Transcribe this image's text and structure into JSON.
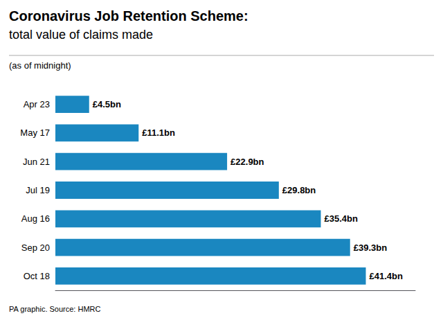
{
  "chart_data": {
    "type": "bar",
    "orientation": "horizontal",
    "title": "Coronavirus Job Retention Scheme:",
    "subtitle": "total value of claims made",
    "annotations": [
      "(as of midnight)",
      "PA graphic. Source: HMRC"
    ],
    "categories": [
      "Apr 23",
      "May 17",
      "Jun 21",
      "Jul 19",
      "Aug 16",
      "Sep 20",
      "Oct 18"
    ],
    "values": [
      4.5,
      11.1,
      22.9,
      29.8,
      35.4,
      39.3,
      41.4
    ],
    "value_labels": [
      "£4.5bn",
      "£11.1bn",
      "£22.9bn",
      "£29.8bn",
      "£35.4bn",
      "£39.3bn",
      "£41.4bn"
    ],
    "data_labels": true,
    "color": "#1a87c0",
    "xlim": [
      0,
      48
    ],
    "grid": false,
    "tick_labels": "y"
  }
}
